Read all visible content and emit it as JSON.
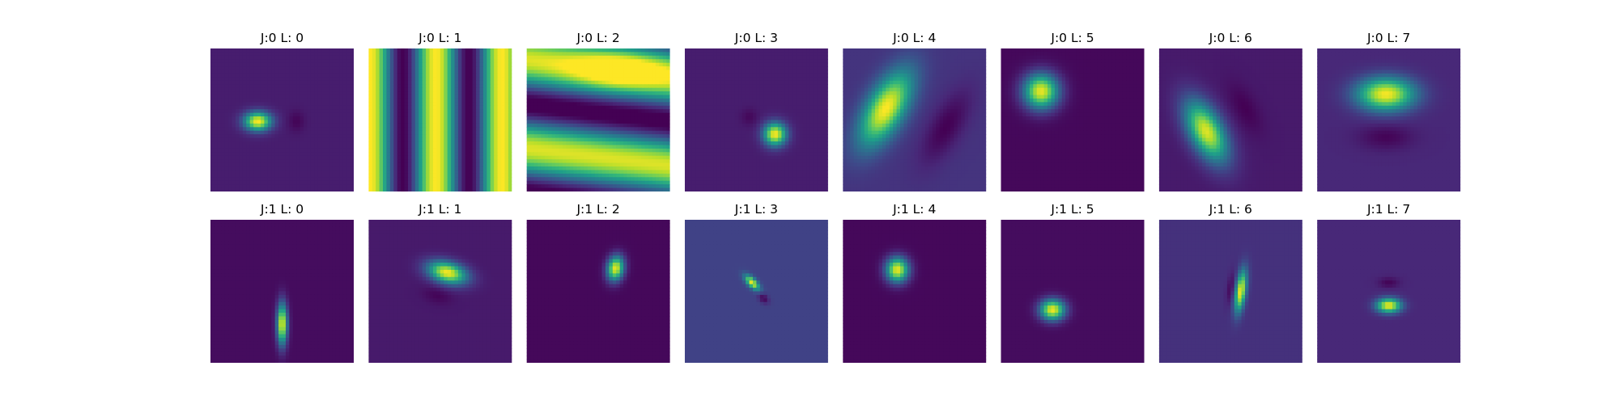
{
  "chart_data": {
    "type": "heatmap",
    "colormap": "viridis",
    "colors": {
      "background": "#ffffff",
      "viridis": [
        "#440154",
        "#482878",
        "#3e4989",
        "#31688e",
        "#26828e",
        "#1f9e89",
        "#35b779",
        "#6ece58",
        "#b5de2b",
        "#fde725"
      ]
    },
    "panels": [
      {
        "title": "J:0 L: 0",
        "j": 0,
        "l": 0,
        "bg": 0.08,
        "blobs": [
          {
            "cx": 0.33,
            "cy": 0.51,
            "sx": 0.065,
            "sy": 0.045,
            "rot": 0,
            "a": 0.92
          },
          {
            "cx": 0.6,
            "cy": 0.51,
            "sx": 0.04,
            "sy": 0.05,
            "rot": 0,
            "a": -0.07
          }
        ]
      },
      {
        "title": "J:0 L: 1",
        "j": 0,
        "l": 1,
        "bg": 0.5,
        "stripes": {
          "orientation": "vertical",
          "period": 0.92,
          "phase": 0.03,
          "amp": 0.5
        }
      },
      {
        "title": "J:0 L: 2",
        "j": 0,
        "l": 2,
        "bg": 0.5,
        "waves": {
          "period": 0.62,
          "phase": 0.14,
          "tilt": -0.12,
          "amp": 0.5,
          "hotspot": {
            "cx": 0.65,
            "cy": 0.15,
            "a": 0.35
          }
        }
      },
      {
        "title": "J:0 L: 3",
        "j": 0,
        "l": 3,
        "bg": 0.08,
        "blobs": [
          {
            "cx": 0.63,
            "cy": 0.6,
            "sx": 0.055,
            "sy": 0.055,
            "rot": 0,
            "a": 0.92
          },
          {
            "cx": 0.45,
            "cy": 0.48,
            "sx": 0.04,
            "sy": 0.04,
            "rot": 0,
            "a": -0.06
          }
        ]
      },
      {
        "title": "J:0 L: 4",
        "j": 0,
        "l": 4,
        "bg": 0.15,
        "blobs": [
          {
            "cx": 0.3,
            "cy": 0.42,
            "sx": 0.09,
            "sy": 0.2,
            "rot": 30,
            "a": 0.85
          },
          {
            "cx": 0.72,
            "cy": 0.55,
            "sx": 0.08,
            "sy": 0.2,
            "rot": 30,
            "a": -0.15
          }
        ]
      },
      {
        "title": "J:0 L: 5",
        "j": 0,
        "l": 5,
        "bg": 0.02,
        "blobs": [
          {
            "cx": 0.28,
            "cy": 0.3,
            "sx": 0.085,
            "sy": 0.085,
            "rot": 0,
            "a": 0.95
          }
        ]
      },
      {
        "title": "J:0 L: 6",
        "j": 0,
        "l": 6,
        "bg": 0.07,
        "blobs": [
          {
            "cx": 0.33,
            "cy": 0.58,
            "sx": 0.08,
            "sy": 0.16,
            "rot": -28,
            "a": 0.88
          },
          {
            "cx": 0.6,
            "cy": 0.42,
            "sx": 0.06,
            "sy": 0.13,
            "rot": -28,
            "a": -0.07
          }
        ]
      },
      {
        "title": "J:0 L: 7",
        "j": 0,
        "l": 7,
        "bg": 0.11,
        "blobs": [
          {
            "cx": 0.48,
            "cy": 0.32,
            "sx": 0.14,
            "sy": 0.08,
            "rot": 0,
            "a": 0.88
          },
          {
            "cx": 0.48,
            "cy": 0.62,
            "sx": 0.13,
            "sy": 0.06,
            "rot": 0,
            "a": -0.1
          }
        ]
      },
      {
        "title": "J:1 L: 0",
        "j": 1,
        "l": 0,
        "bg": 0.03,
        "blobs": [
          {
            "cx": 0.5,
            "cy": 0.73,
            "sx": 0.025,
            "sy": 0.1,
            "rot": 0,
            "a": 0.95
          }
        ]
      },
      {
        "title": "J:1 L: 1",
        "j": 1,
        "l": 1,
        "bg": 0.07,
        "blobs": [
          {
            "cx": 0.55,
            "cy": 0.37,
            "sx": 0.095,
            "sy": 0.05,
            "rot": 15,
            "a": 0.92
          },
          {
            "cx": 0.48,
            "cy": 0.53,
            "sx": 0.07,
            "sy": 0.04,
            "rot": 15,
            "a": -0.06
          }
        ]
      },
      {
        "title": "J:1 L: 2",
        "j": 1,
        "l": 2,
        "bg": 0.02,
        "blobs": [
          {
            "cx": 0.62,
            "cy": 0.34,
            "sx": 0.04,
            "sy": 0.06,
            "rot": 10,
            "a": 0.95
          }
        ]
      },
      {
        "title": "J:1 L: 3",
        "j": 1,
        "l": 3,
        "bg": 0.2,
        "blobs": [
          {
            "cx": 0.47,
            "cy": 0.44,
            "sx": 0.02,
            "sy": 0.045,
            "rot": -45,
            "a": 0.78
          },
          {
            "cx": 0.55,
            "cy": 0.55,
            "sx": 0.02,
            "sy": 0.03,
            "rot": -45,
            "a": -0.2
          }
        ]
      },
      {
        "title": "J:1 L: 4",
        "j": 1,
        "l": 4,
        "bg": 0.02,
        "blobs": [
          {
            "cx": 0.38,
            "cy": 0.35,
            "sx": 0.055,
            "sy": 0.06,
            "rot": 0,
            "a": 0.95
          }
        ]
      },
      {
        "title": "J:1 L: 5",
        "j": 1,
        "l": 5,
        "bg": 0.03,
        "blobs": [
          {
            "cx": 0.36,
            "cy": 0.63,
            "sx": 0.06,
            "sy": 0.05,
            "rot": 0,
            "a": 0.95
          }
        ]
      },
      {
        "title": "J:1 L: 6",
        "j": 1,
        "l": 6,
        "bg": 0.14,
        "blobs": [
          {
            "cx": 0.57,
            "cy": 0.5,
            "sx": 0.025,
            "sy": 0.1,
            "rot": 8,
            "a": 0.85
          },
          {
            "cx": 0.5,
            "cy": 0.48,
            "sx": 0.02,
            "sy": 0.08,
            "rot": 8,
            "a": -0.12
          }
        ]
      },
      {
        "title": "J:1 L: 7",
        "j": 1,
        "l": 7,
        "bg": 0.11,
        "blobs": [
          {
            "cx": 0.5,
            "cy": 0.6,
            "sx": 0.06,
            "sy": 0.035,
            "rot": 0,
            "a": 0.88
          },
          {
            "cx": 0.5,
            "cy": 0.44,
            "sx": 0.05,
            "sy": 0.025,
            "rot": 0,
            "a": -0.1
          }
        ]
      }
    ]
  }
}
